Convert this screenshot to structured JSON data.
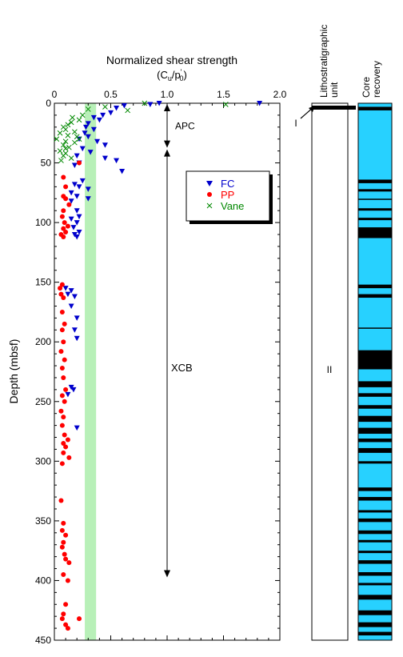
{
  "chart_data": {
    "type": "scatter",
    "title": "Normalized shear strength",
    "subtitle": "(C_u/p'_0)",
    "xlabel": "",
    "ylabel": "Depth (mbsf)",
    "xlim": [
      0,
      2.0
    ],
    "ylim": [
      450,
      0
    ],
    "x_ticks": [
      "0",
      "0.5",
      "1.0",
      "1.5",
      "2.0"
    ],
    "y_ticks": [
      "0",
      "50",
      "100",
      "150",
      "200",
      "250",
      "300",
      "350",
      "400",
      "450"
    ],
    "reference_band": {
      "x_from": 0.27,
      "x_to": 0.37,
      "color": "#b8f0b8"
    },
    "legend": {
      "placement": "inside-right",
      "items": [
        "FC",
        "PP",
        "Vane"
      ]
    },
    "series": [
      {
        "name": "FC",
        "marker": "triangle-down",
        "color": "#0000cc",
        "points": [
          [
            0.93,
            0
          ],
          [
            1.82,
            0
          ],
          [
            0.85,
            1
          ],
          [
            0.62,
            2
          ],
          [
            0.55,
            4
          ],
          [
            0.5,
            8
          ],
          [
            0.43,
            10
          ],
          [
            0.35,
            12
          ],
          [
            0.4,
            14
          ],
          [
            0.3,
            17
          ],
          [
            0.28,
            20
          ],
          [
            0.35,
            22
          ],
          [
            0.27,
            25
          ],
          [
            0.3,
            28
          ],
          [
            0.22,
            30
          ],
          [
            0.38,
            32
          ],
          [
            0.45,
            35
          ],
          [
            0.25,
            38
          ],
          [
            0.32,
            41
          ],
          [
            0.2,
            44
          ],
          [
            0.45,
            46
          ],
          [
            0.55,
            48
          ],
          [
            0.22,
            50
          ],
          [
            0.18,
            52
          ],
          [
            0.6,
            57
          ],
          [
            0.25,
            65
          ],
          [
            0.18,
            68
          ],
          [
            0.22,
            70
          ],
          [
            0.3,
            72
          ],
          [
            0.15,
            75
          ],
          [
            0.2,
            78
          ],
          [
            0.3,
            80
          ],
          [
            0.15,
            82
          ],
          [
            0.2,
            90
          ],
          [
            0.22,
            95
          ],
          [
            0.15,
            97
          ],
          [
            0.2,
            100
          ],
          [
            0.17,
            104
          ],
          [
            0.22,
            108
          ],
          [
            0.18,
            110
          ],
          [
            0.2,
            112
          ],
          [
            0.1,
            155
          ],
          [
            0.15,
            157
          ],
          [
            0.12,
            160
          ],
          [
            0.18,
            162
          ],
          [
            0.15,
            170
          ],
          [
            0.2,
            180
          ],
          [
            0.18,
            190
          ],
          [
            0.2,
            197
          ],
          [
            0.15,
            238
          ],
          [
            0.17,
            240
          ],
          [
            0.12,
            244
          ],
          [
            0.2,
            272
          ]
        ]
      },
      {
        "name": "PP",
        "marker": "circle",
        "color": "#ff0000",
        "points": [
          [
            0.22,
            50
          ],
          [
            0.08,
            62
          ],
          [
            0.1,
            70
          ],
          [
            0.08,
            78
          ],
          [
            0.1,
            80
          ],
          [
            0.13,
            85
          ],
          [
            0.08,
            90
          ],
          [
            0.07,
            95
          ],
          [
            0.09,
            100
          ],
          [
            0.12,
            103
          ],
          [
            0.08,
            105
          ],
          [
            0.1,
            108
          ],
          [
            0.06,
            110
          ],
          [
            0.08,
            112
          ],
          [
            0.07,
            152
          ],
          [
            0.05,
            155
          ],
          [
            0.06,
            160
          ],
          [
            0.08,
            163
          ],
          [
            0.07,
            175
          ],
          [
            0.09,
            185
          ],
          [
            0.07,
            190
          ],
          [
            0.08,
            200
          ],
          [
            0.06,
            208
          ],
          [
            0.09,
            215
          ],
          [
            0.07,
            222
          ],
          [
            0.08,
            230
          ],
          [
            0.1,
            240
          ],
          [
            0.07,
            245
          ],
          [
            0.09,
            250
          ],
          [
            0.06,
            258
          ],
          [
            0.08,
            263
          ],
          [
            0.07,
            270
          ],
          [
            0.09,
            278
          ],
          [
            0.12,
            282
          ],
          [
            0.08,
            285
          ],
          [
            0.1,
            288
          ],
          [
            0.08,
            293
          ],
          [
            0.13,
            297
          ],
          [
            0.07,
            302
          ],
          [
            0.06,
            333
          ],
          [
            0.08,
            352
          ],
          [
            0.07,
            358
          ],
          [
            0.1,
            362
          ],
          [
            0.08,
            368
          ],
          [
            0.07,
            372
          ],
          [
            0.09,
            378
          ],
          [
            0.1,
            382
          ],
          [
            0.13,
            385
          ],
          [
            0.08,
            395
          ],
          [
            0.12,
            400
          ],
          [
            0.1,
            420
          ],
          [
            0.08,
            428
          ],
          [
            0.07,
            432
          ],
          [
            0.1,
            437
          ],
          [
            0.12,
            440
          ],
          [
            0.22,
            432
          ]
        ]
      },
      {
        "name": "Vane",
        "marker": "cross",
        "color": "#008800",
        "points": [
          [
            0.8,
            0
          ],
          [
            1.52,
            1
          ],
          [
            0.65,
            6
          ],
          [
            0.45,
            3
          ],
          [
            0.3,
            5
          ],
          [
            0.25,
            10
          ],
          [
            0.22,
            14
          ],
          [
            0.15,
            16
          ],
          [
            0.12,
            18
          ],
          [
            0.08,
            20
          ],
          [
            0.1,
            22
          ],
          [
            0.05,
            25
          ],
          [
            0.12,
            27
          ],
          [
            0.2,
            28
          ],
          [
            0.02,
            30
          ],
          [
            0.1,
            32
          ],
          [
            0.18,
            33
          ],
          [
            0.08,
            35
          ],
          [
            0.13,
            37
          ],
          [
            0.05,
            40
          ],
          [
            0.1,
            42
          ],
          [
            0.08,
            44
          ],
          [
            0.15,
            46
          ],
          [
            0.06,
            48
          ],
          [
            0.1,
            38
          ],
          [
            0.18,
            24
          ],
          [
            0.22,
            30
          ],
          [
            0.16,
            12
          ]
        ]
      }
    ],
    "annotations": [
      {
        "text": "APC",
        "from_depth": 0,
        "to_depth": 38
      },
      {
        "text": "XCB",
        "from_depth": 38,
        "to_depth": 398
      }
    ]
  },
  "lithology": {
    "header": "Lithostratigraphic unit",
    "units": [
      {
        "label": "I",
        "top": 0,
        "bottom": 4
      },
      {
        "label": "II",
        "top": 4,
        "bottom": 450
      }
    ]
  },
  "core_recovery": {
    "header": "Core recovery",
    "recovered_color": "#000000",
    "unrecovered_color": "#27d1ff",
    "recovered_intervals": [
      [
        3,
        6
      ],
      [
        64,
        67
      ],
      [
        72,
        74
      ],
      [
        80,
        81
      ],
      [
        88,
        90
      ],
      [
        96,
        98
      ],
      [
        104,
        113
      ],
      [
        152,
        155
      ],
      [
        160,
        163
      ],
      [
        188,
        189
      ],
      [
        207,
        223
      ],
      [
        233,
        238
      ],
      [
        243,
        246
      ],
      [
        253,
        256
      ],
      [
        262,
        267
      ],
      [
        272,
        277
      ],
      [
        281,
        284
      ],
      [
        289,
        293
      ],
      [
        300,
        302
      ],
      [
        322,
        325
      ],
      [
        330,
        333
      ],
      [
        341,
        343
      ],
      [
        348,
        351
      ],
      [
        358,
        361
      ],
      [
        366,
        368
      ],
      [
        375,
        377
      ],
      [
        383,
        386
      ],
      [
        393,
        396
      ],
      [
        402,
        404
      ],
      [
        412,
        416
      ],
      [
        425,
        429
      ],
      [
        435,
        439
      ],
      [
        443,
        446
      ]
    ]
  }
}
